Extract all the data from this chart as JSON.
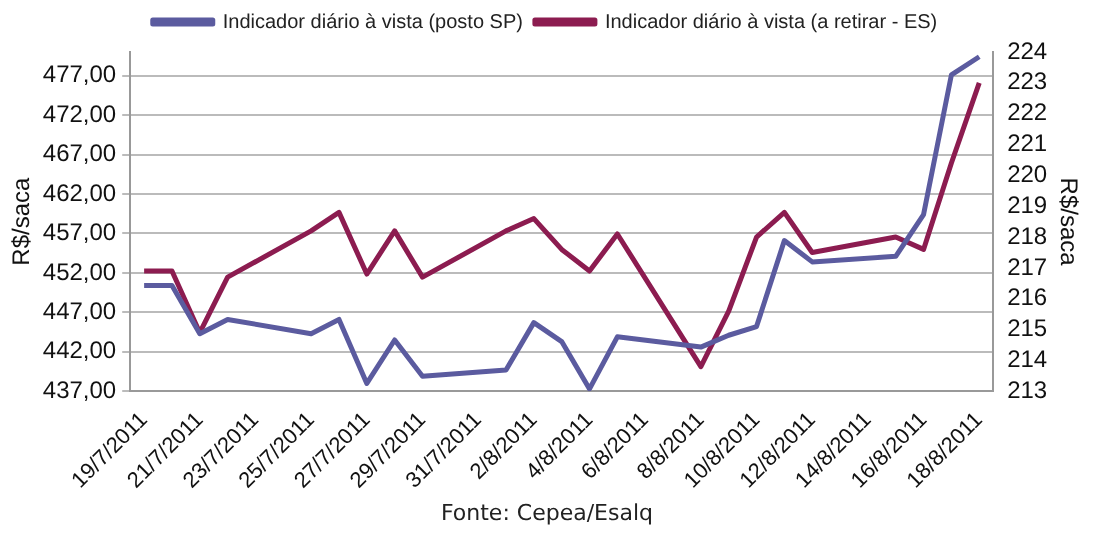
{
  "chart_data": {
    "type": "line",
    "ylabel": "R$/saca",
    "y2label": "R$/saca",
    "annotations": [
      "Fonte: Cepea/Esalq"
    ],
    "categories": [
      "19/7/2011",
      null,
      "21/7/2011",
      null,
      "23/7/2011",
      null,
      "25/7/2011",
      null,
      "27/7/2011",
      null,
      "29/7/2011",
      null,
      "31/7/2011",
      null,
      "2/8/2011",
      null,
      "4/8/2011",
      null,
      "6/8/2011",
      null,
      "8/8/2011",
      null,
      "10/8/2011",
      null,
      "12/8/2011",
      null,
      "14/8/2011",
      null,
      "16/8/2011",
      null,
      "18/8/2011"
    ],
    "series": [
      {
        "name": "Indicador diário à vista (posto SP)",
        "color": "#5b5b9f",
        "values": [
          450.4,
          450.4,
          444.3,
          446.1,
          null,
          null,
          444.3,
          446.1,
          438.0,
          443.5,
          438.9,
          null,
          null,
          439.7,
          445.7,
          443.3,
          437.3,
          443.9,
          null,
          null,
          442.6,
          444.1,
          445.2,
          456.1,
          453.4,
          null,
          null,
          454.1,
          459.4,
          477.1,
          479.4
        ]
      },
      {
        "name": "Indicador diário à vista (a retirar - ES)",
        "color": "#8c1c50",
        "axis": "y2",
        "values": [
          216.9,
          216.9,
          214.9,
          216.7,
          null,
          null,
          218.2,
          218.8,
          216.8,
          218.2,
          216.7,
          null,
          null,
          218.2,
          218.6,
          217.6,
          216.9,
          218.1,
          null,
          null,
          213.8,
          215.6,
          218.0,
          218.8,
          217.5,
          null,
          null,
          218.0,
          217.6,
          220.4,
          223.0
        ]
      }
    ],
    "ylim": [
      437,
      480
    ],
    "yticks": [
      {
        "value": 437,
        "label": "437,00"
      },
      {
        "value": 442,
        "label": "442,00"
      },
      {
        "value": 447,
        "label": "447,00"
      },
      {
        "value": 452,
        "label": "452,00"
      },
      {
        "value": 457,
        "label": "457,00"
      },
      {
        "value": 462,
        "label": "462,00"
      },
      {
        "value": 467,
        "label": "467,00"
      },
      {
        "value": 472,
        "label": "472,00"
      },
      {
        "value": 477,
        "label": "477,00"
      }
    ],
    "y2lim": [
      213,
      224
    ],
    "y2ticks": [
      213,
      214,
      215,
      216,
      217,
      218,
      219,
      220,
      221,
      222,
      223,
      224
    ],
    "grid": "y",
    "legend": "top",
    "marker": "none",
    "line_style": "solid"
  }
}
